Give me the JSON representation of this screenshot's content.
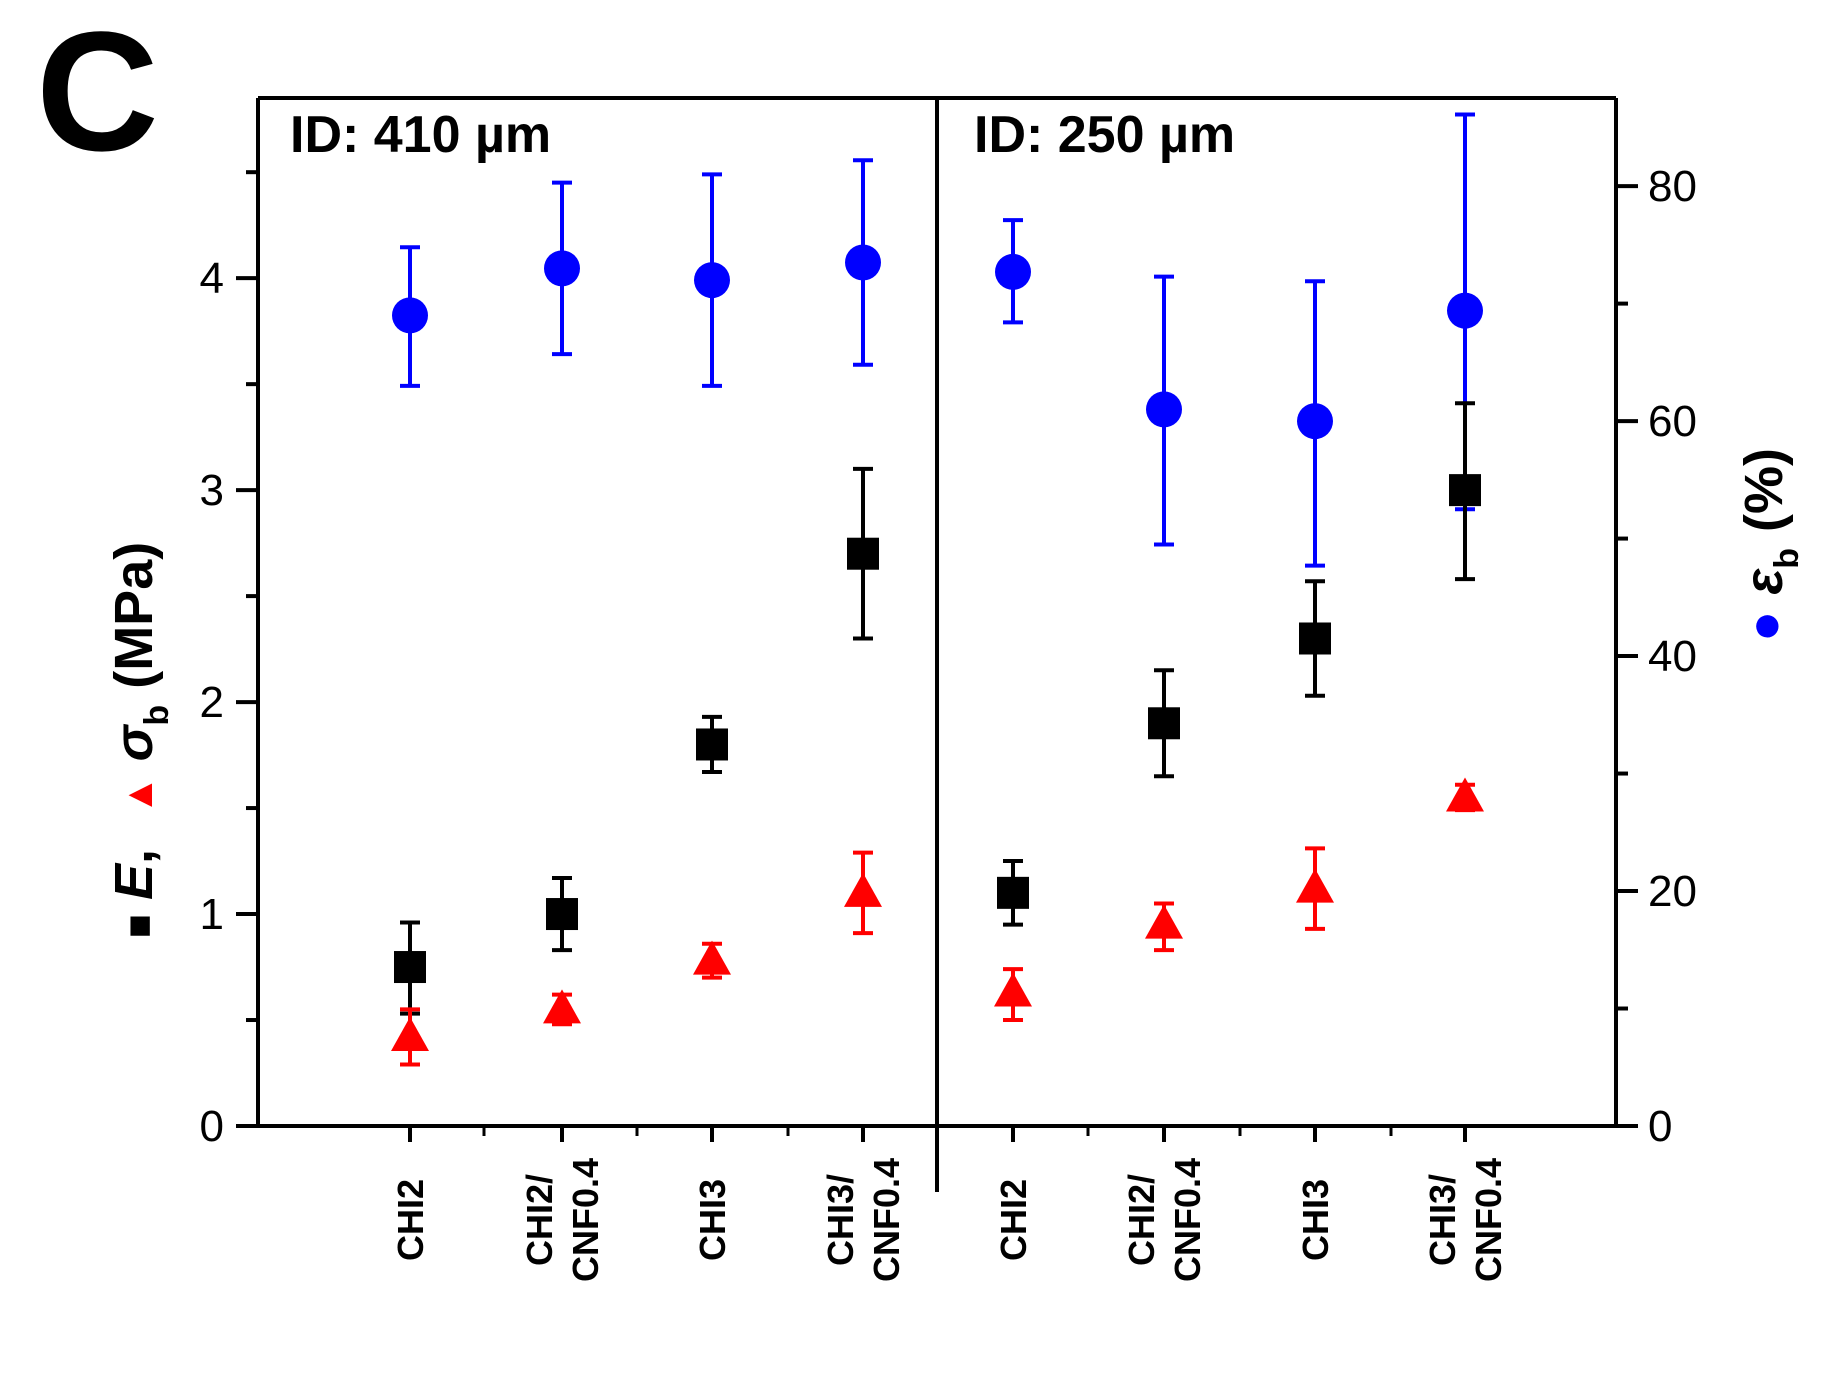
{
  "figure_label": "C",
  "chart_data": {
    "type": "scatter",
    "panels": [
      {
        "label": "ID: 410  µm",
        "categories": [
          [
            "CHI2"
          ],
          [
            "CHI2/",
            "CNF0.4"
          ],
          [
            "CHI3"
          ],
          [
            "CHI3/",
            "CNF0.4"
          ]
        ]
      },
      {
        "label": "ID: 250  µm",
        "categories": [
          [
            "CHI2"
          ],
          [
            "CHI2/",
            "CNF0.4"
          ],
          [
            "CHI3"
          ],
          [
            "CHI3/",
            "CNF0.4"
          ]
        ]
      }
    ],
    "left_axis": {
      "title": {
        "e_marker": "■",
        "e": "E",
        "comma": ",",
        "sig_marker": "▲",
        "sig": "σ",
        "sig_sub": "b",
        "unit": "(MPa)"
      },
      "ylim": [
        0,
        4.85
      ],
      "ticks": [
        0,
        1,
        2,
        3,
        4
      ],
      "tick_labels": [
        "0",
        "1",
        "2",
        "3",
        "4"
      ],
      "minor_ticks": [
        0.5,
        1.5,
        2.5,
        3.5,
        4.5
      ]
    },
    "right_axis": {
      "title": {
        "marker": "●",
        "eps": "ε",
        "eps_sub": "b",
        "unit": "(%)"
      },
      "ylim": [
        0,
        87.5
      ],
      "ticks": [
        0,
        20,
        40,
        60,
        80
      ],
      "tick_labels": [
        "0",
        "20",
        "40",
        "60",
        "80"
      ],
      "minor_ticks": [
        10,
        30,
        50,
        70
      ]
    },
    "series": [
      {
        "name": "E",
        "axis": "left",
        "marker": "square",
        "color": "#000000",
        "values": [
          0.75,
          1.0,
          1.8,
          2.7,
          1.1,
          1.9,
          2.3,
          3.0
        ],
        "err_low": [
          0.22,
          0.17,
          0.13,
          0.4,
          0.15,
          0.25,
          0.27,
          0.42
        ],
        "err_high": [
          0.21,
          0.17,
          0.13,
          0.4,
          0.15,
          0.25,
          0.27,
          0.41
        ]
      },
      {
        "name": "σb",
        "axis": "left",
        "marker": "triangle",
        "color": "#ff0000",
        "values": [
          0.42,
          0.55,
          0.78,
          1.1,
          0.63,
          0.95,
          1.12,
          1.55
        ],
        "err_low": [
          0.13,
          0.07,
          0.08,
          0.19,
          0.13,
          0.12,
          0.19,
          0.06
        ],
        "err_high": [
          0.13,
          0.07,
          0.08,
          0.19,
          0.11,
          0.1,
          0.19,
          0.06
        ]
      },
      {
        "name": "εb",
        "axis": "right",
        "marker": "circle",
        "color": "#0000ff",
        "values": [
          69,
          73,
          72,
          73.5,
          72.7,
          61,
          60,
          69.4
        ],
        "err_low": [
          6,
          7.3,
          9,
          8.7,
          4.3,
          11.5,
          12.3,
          16.9
        ],
        "err_high": [
          5.8,
          7.3,
          9,
          8.7,
          4.4,
          11.3,
          11.9,
          16.7
        ]
      }
    ],
    "colors": {
      "E": "#000000",
      "sigma": "#ff0000",
      "eps": "#0000ff"
    }
  }
}
